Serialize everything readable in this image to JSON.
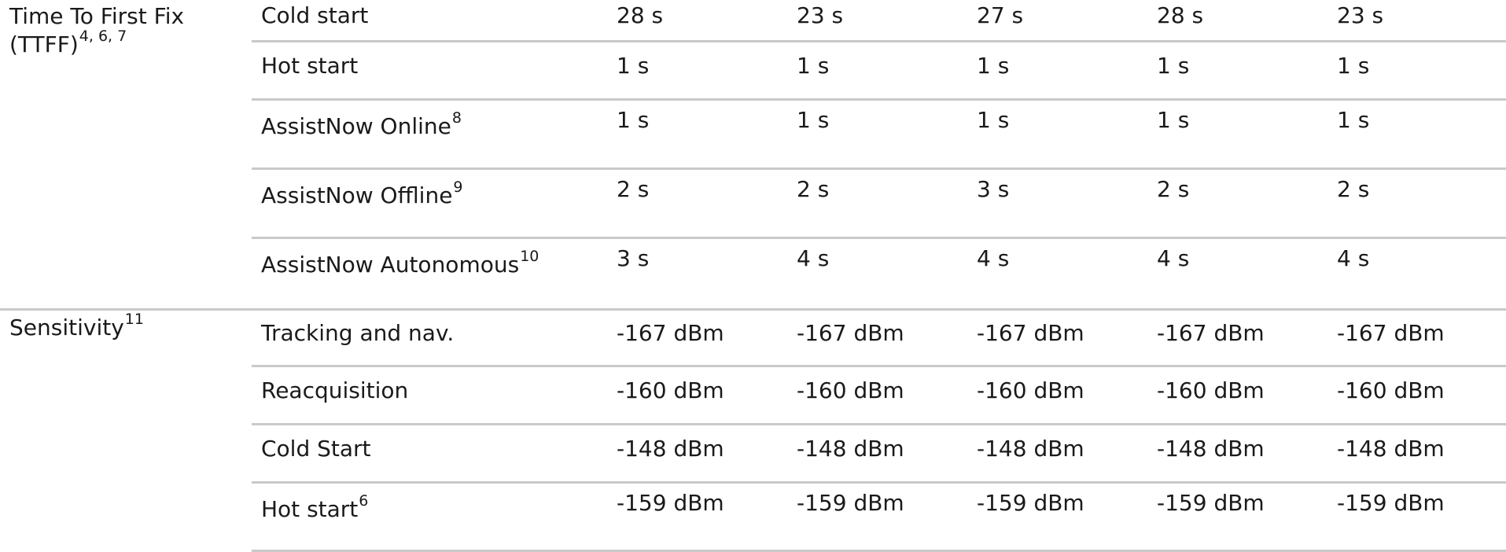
{
  "groups": [
    {
      "title_line1": "Time To First Fix",
      "title_line2": "(TTFF)",
      "title_sup": "4, 6, 7",
      "rows": [
        {
          "label": "Cold start",
          "sup": "",
          "values": [
            "28 s",
            "23 s",
            "27 s",
            "28 s",
            "23 s"
          ]
        },
        {
          "label": "Hot start",
          "sup": "",
          "values": [
            "1 s",
            "1 s",
            "1 s",
            "1 s",
            "1 s"
          ]
        },
        {
          "label": "AssistNow Online",
          "sup": "8",
          "values": [
            "1 s",
            "1 s",
            "1 s",
            "1 s",
            "1 s"
          ]
        },
        {
          "label": "AssistNow Offline",
          "sup": "9",
          "values": [
            "2 s",
            "2 s",
            "3 s",
            "2 s",
            "2 s"
          ]
        },
        {
          "label": "AssistNow Autonomous",
          "sup": "10",
          "values": [
            "3 s",
            "4 s",
            "4 s",
            "4 s",
            "4 s"
          ]
        }
      ]
    },
    {
      "title_line1": "Sensitivity",
      "title_sup": "11",
      "rows": [
        {
          "label": "Tracking and nav.",
          "sup": "",
          "values": [
            "-167 dBm",
            "-167 dBm",
            "-167 dBm",
            "-167 dBm",
            "-167 dBm"
          ]
        },
        {
          "label": "Reacquisition",
          "sup": "",
          "values": [
            "-160 dBm",
            "-160 dBm",
            "-160 dBm",
            "-160 dBm",
            "-160 dBm"
          ]
        },
        {
          "label": "Cold Start",
          "sup": "",
          "values": [
            "-148 dBm",
            "-148 dBm",
            "-148 dBm",
            "-148 dBm",
            "-148 dBm"
          ]
        },
        {
          "label": "Hot start",
          "sup": "6",
          "values": [
            "-159 dBm",
            "-159 dBm",
            "-159 dBm",
            "-159 dBm",
            "-159 dBm"
          ]
        }
      ]
    }
  ]
}
